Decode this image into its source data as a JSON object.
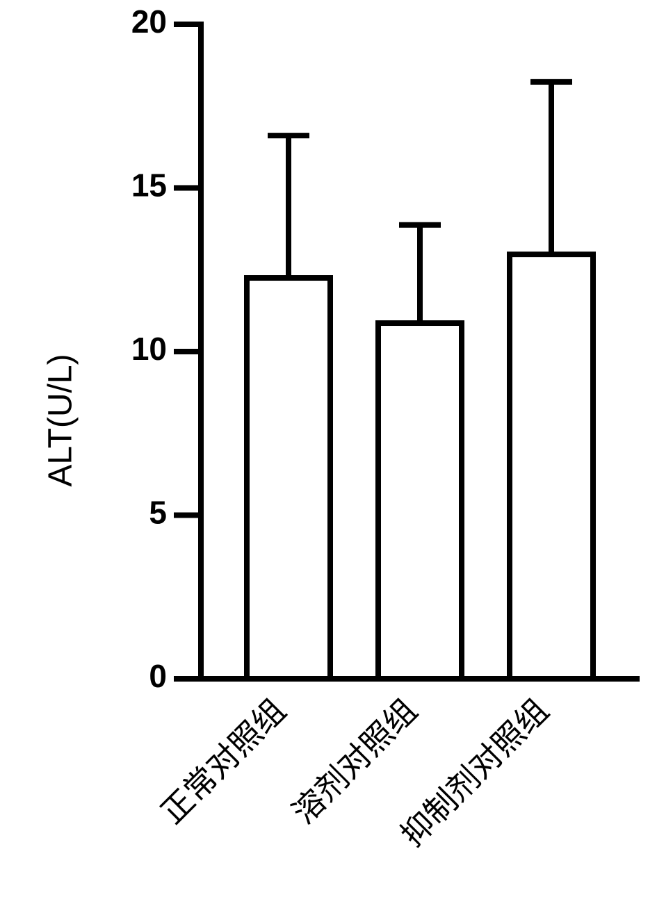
{
  "chart_data": {
    "type": "bar",
    "y_label": "ALT(U/L)",
    "categories": [
      "正常对照组",
      "溶剂对照组",
      "抑制剂对照组"
    ],
    "values": [
      12.25,
      10.87,
      12.97
    ],
    "errors": [
      4.35,
      3.0,
      5.27
    ],
    "color": "#ffffff",
    "ylim": [
      0,
      20
    ],
    "yticks": [
      0,
      5,
      10,
      15,
      20
    ],
    "grid": false
  }
}
